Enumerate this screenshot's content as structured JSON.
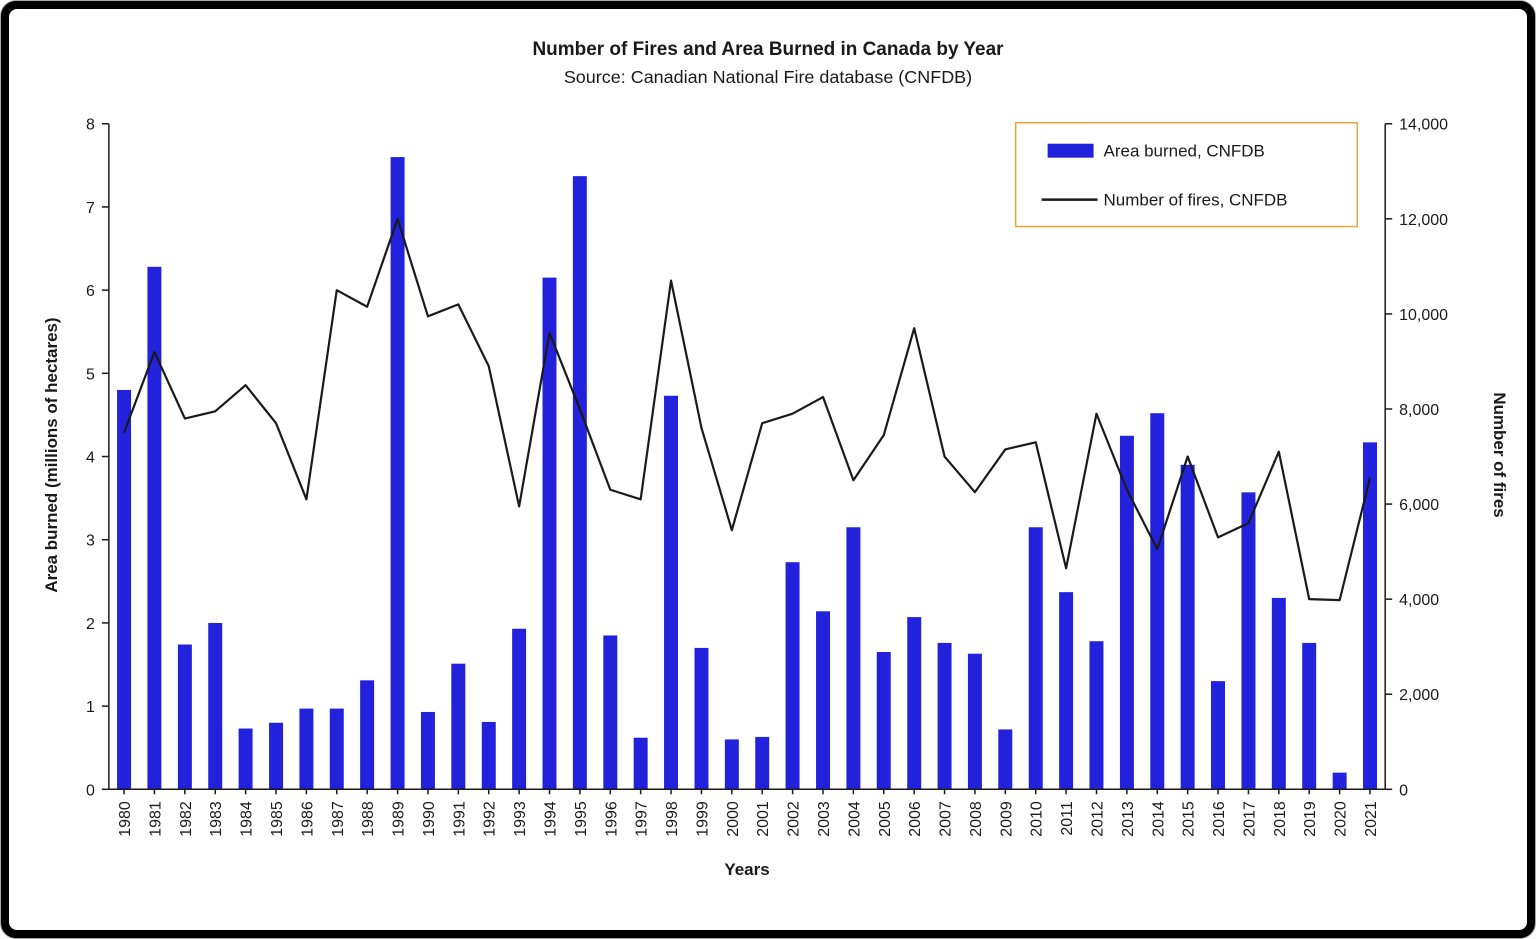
{
  "page": {
    "frame_color": "#000000",
    "panel_background": "#ffffff"
  },
  "chart_data": {
    "type": "bar+line",
    "title": "Number of Fires and Area Burned in Canada by Year",
    "subtitle": "Source: Canadian National Fire database (CNFDB)",
    "xlabel": "Years",
    "ylabel_left": "Area burned (millions of hectares)",
    "ylabel_right": "Number of fires",
    "grid": false,
    "categories": [
      "1980",
      "1981",
      "1982",
      "1983",
      "1984",
      "1985",
      "1986",
      "1987",
      "1988",
      "1989",
      "1990",
      "1991",
      "1992",
      "1993",
      "1994",
      "1995",
      "1996",
      "1997",
      "1998",
      "1999",
      "2000",
      "2001",
      "2002",
      "2003",
      "2004",
      "2005",
      "2006",
      "2007",
      "2008",
      "2009",
      "2010",
      "2011",
      "2012",
      "2013",
      "2014",
      "2015",
      "2016",
      "2017",
      "2018",
      "2019",
      "2020",
      "2021"
    ],
    "series": [
      {
        "name": "Area burned, CNFDB",
        "type": "bar",
        "axis": "left",
        "color": "#2222dd",
        "values": [
          4.8,
          6.28,
          1.74,
          2.0,
          0.73,
          0.8,
          0.97,
          0.97,
          1.31,
          7.6,
          0.93,
          1.51,
          0.81,
          1.93,
          6.15,
          7.37,
          1.85,
          0.62,
          4.73,
          1.7,
          0.6,
          0.63,
          2.73,
          2.14,
          3.15,
          1.65,
          2.07,
          1.76,
          1.63,
          0.72,
          3.15,
          2.37,
          1.78,
          4.25,
          4.52,
          3.9,
          1.3,
          3.57,
          2.3,
          1.76,
          0.2,
          4.17
        ]
      },
      {
        "name": "Number of fires, CNFDB",
        "type": "line",
        "axis": "right",
        "color": "#1a1a1a",
        "values": [
          7500,
          9200,
          7800,
          7950,
          8500,
          7700,
          6100,
          10500,
          10150,
          12000,
          9950,
          10200,
          8900,
          5950,
          9600,
          8000,
          6300,
          6100,
          10700,
          7600,
          5450,
          7700,
          7900,
          8250,
          6500,
          7450,
          9700,
          7000,
          6250,
          7150,
          7300,
          4650,
          7900,
          6300,
          5050,
          7000,
          5300,
          5600,
          7100,
          4000,
          3980,
          6550
        ]
      }
    ],
    "left_axis": {
      "min": 0,
      "max": 8,
      "step": 1,
      "ticks": [
        "0",
        "1",
        "2",
        "3",
        "4",
        "5",
        "6",
        "7",
        "8"
      ]
    },
    "right_axis": {
      "min": 0,
      "max": 14000,
      "step": 2000,
      "ticks": [
        "0",
        "2,000",
        "4,000",
        "6,000",
        "8,000",
        "10,000",
        "12,000",
        "14,000"
      ]
    },
    "legend": {
      "position": "top-right",
      "border_color": "#e8a33d",
      "entries": [
        "Area burned, CNFDB",
        "Number of fires, CNFDB"
      ]
    }
  }
}
